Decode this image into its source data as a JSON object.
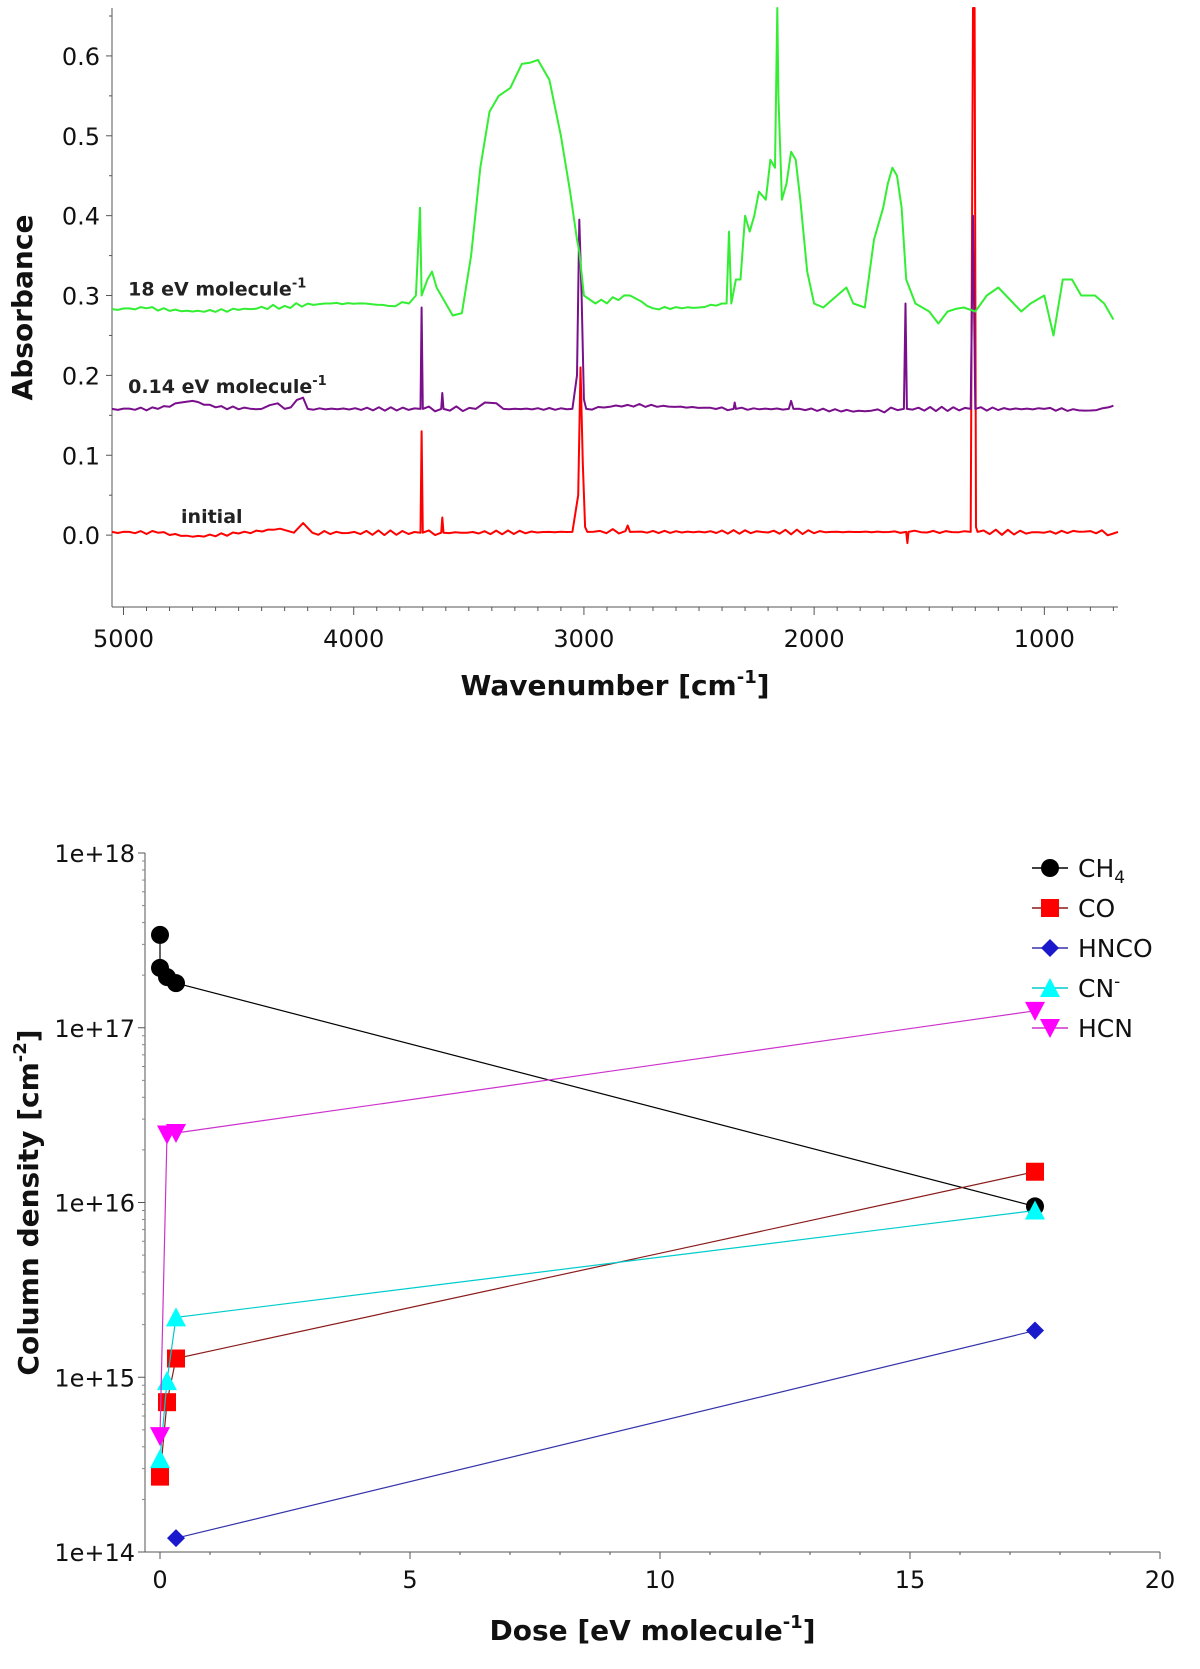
{
  "chart_data": [
    {
      "type": "line",
      "title": "",
      "xlabel": "Wavenumber [cm",
      "xlabel_sup": "-1",
      "xlabel_end": "]",
      "ylabel": "Absorbance",
      "xlim": [
        5050,
        680
      ],
      "ylim": [
        -0.09,
        0.66
      ],
      "xticks": [
        5000,
        4000,
        3000,
        2000,
        1000
      ],
      "yticks": [
        "0.0",
        "0.1",
        "0.2",
        "0.3",
        "0.4",
        "0.5",
        "0.6"
      ],
      "ytick_values": [
        0.0,
        0.1,
        0.2,
        0.3,
        0.4,
        0.5,
        0.6
      ],
      "series": [
        {
          "name": "initial",
          "label_main": "initial",
          "label_sup": "",
          "label_at": [
            4750,
            0.015
          ],
          "color": "#ff0000",
          "baseline": 0.003,
          "points": [
            [
              5050,
              0.004
            ],
            [
              4850,
              0.003
            ],
            [
              4700,
              -0.002
            ],
            [
              4500,
              0.002
            ],
            [
              4320,
              0.008
            ],
            [
              4260,
              0.003
            ],
            [
              4220,
              0.015
            ],
            [
              4180,
              0.003
            ],
            [
              3710,
              0.003
            ],
            [
              3705,
              0.13
            ],
            [
              3700,
              0.003
            ],
            [
              3620,
              0.003
            ],
            [
              3615,
              0.022
            ],
            [
              3610,
              0.003
            ],
            [
              3050,
              0.004
            ],
            [
              3025,
              0.05
            ],
            [
              3015,
              0.21
            ],
            [
              3005,
              0.09
            ],
            [
              2995,
              0.01
            ],
            [
              2985,
              0.004
            ],
            [
              2820,
              0.005
            ],
            [
              2810,
              0.012
            ],
            [
              2800,
              0.004
            ],
            [
              1600,
              0.004
            ],
            [
              1595,
              -0.01
            ],
            [
              1590,
              0.004
            ],
            [
              1320,
              0.004
            ],
            [
              1310,
              0.66
            ],
            [
              1303,
              0.66
            ],
            [
              1297,
              0.01
            ],
            [
              1290,
              0.004
            ],
            [
              1000,
              0.003
            ],
            [
              800,
              0.005
            ],
            [
              700,
              0.002
            ],
            [
              680,
              0.004
            ]
          ]
        },
        {
          "name": "0.14 eV molecule-1",
          "label_main": "0.14 eV molecule",
          "label_sup": "-1",
          "label_at": [
            4980,
            0.178
          ],
          "color": "#7a0f8c",
          "baseline": 0.158,
          "points": [
            [
              5050,
              0.158
            ],
            [
              4850,
              0.158
            ],
            [
              4750,
              0.166
            ],
            [
              4700,
              0.168
            ],
            [
              4600,
              0.16
            ],
            [
              4400,
              0.158
            ],
            [
              4330,
              0.165
            ],
            [
              4300,
              0.158
            ],
            [
              4220,
              0.172
            ],
            [
              4200,
              0.158
            ],
            [
              3710,
              0.158
            ],
            [
              3705,
              0.285
            ],
            [
              3700,
              0.158
            ],
            [
              3620,
              0.158
            ],
            [
              3615,
              0.178
            ],
            [
              3610,
              0.158
            ],
            [
              3470,
              0.158
            ],
            [
              3430,
              0.166
            ],
            [
              3380,
              0.165
            ],
            [
              3350,
              0.158
            ],
            [
              3050,
              0.158
            ],
            [
              3030,
              0.2
            ],
            [
              3020,
              0.395
            ],
            [
              3010,
              0.3
            ],
            [
              3000,
              0.17
            ],
            [
              2990,
              0.158
            ],
            [
              2810,
              0.163
            ],
            [
              2350,
              0.158
            ],
            [
              2345,
              0.166
            ],
            [
              2340,
              0.158
            ],
            [
              2110,
              0.158
            ],
            [
              2100,
              0.168
            ],
            [
              2090,
              0.158
            ],
            [
              1780,
              0.155
            ],
            [
              1610,
              0.158
            ],
            [
              1603,
              0.29
            ],
            [
              1597,
              0.158
            ],
            [
              1320,
              0.158
            ],
            [
              1310,
              0.4
            ],
            [
              1300,
              0.158
            ],
            [
              1000,
              0.158
            ],
            [
              800,
              0.156
            ],
            [
              720,
              0.16
            ],
            [
              700,
              0.162
            ]
          ]
        },
        {
          "name": "18 eV molecule-1",
          "label_main": "18 eV molecule",
          "label_sup": "-1",
          "label_at": [
            4980,
            0.3
          ],
          "color": "#33ee33",
          "baseline": 0.28,
          "points": [
            [
              5050,
              0.283
            ],
            [
              4900,
              0.284
            ],
            [
              4700,
              0.28
            ],
            [
              4500,
              0.282
            ],
            [
              4300,
              0.287
            ],
            [
              4100,
              0.29
            ],
            [
              3950,
              0.29
            ],
            [
              3850,
              0.287
            ],
            [
              3760,
              0.29
            ],
            [
              3730,
              0.3
            ],
            [
              3712,
              0.41
            ],
            [
              3705,
              0.3
            ],
            [
              3680,
              0.32
            ],
            [
              3660,
              0.33
            ],
            [
              3640,
              0.31
            ],
            [
              3600,
              0.29
            ],
            [
              3570,
              0.275
            ],
            [
              3530,
              0.278
            ],
            [
              3490,
              0.35
            ],
            [
              3450,
              0.46
            ],
            [
              3410,
              0.53
            ],
            [
              3370,
              0.55
            ],
            [
              3320,
              0.56
            ],
            [
              3270,
              0.59
            ],
            [
              3200,
              0.595
            ],
            [
              3150,
              0.57
            ],
            [
              3100,
              0.5
            ],
            [
              3060,
              0.43
            ],
            [
              3030,
              0.37
            ],
            [
              3020,
              0.355
            ],
            [
              3000,
              0.3
            ],
            [
              2950,
              0.29
            ],
            [
              2800,
              0.3
            ],
            [
              2700,
              0.284
            ],
            [
              2500,
              0.285
            ],
            [
              2400,
              0.29
            ],
            [
              2380,
              0.29
            ],
            [
              2370,
              0.38
            ],
            [
              2360,
              0.29
            ],
            [
              2340,
              0.32
            ],
            [
              2320,
              0.32
            ],
            [
              2300,
              0.4
            ],
            [
              2280,
              0.38
            ],
            [
              2260,
              0.4
            ],
            [
              2240,
              0.43
            ],
            [
              2210,
              0.42
            ],
            [
              2190,
              0.47
            ],
            [
              2170,
              0.46
            ],
            [
              2160,
              0.66
            ],
            [
              2155,
              0.55
            ],
            [
              2140,
              0.42
            ],
            [
              2120,
              0.44
            ],
            [
              2100,
              0.48
            ],
            [
              2080,
              0.47
            ],
            [
              2060,
              0.42
            ],
            [
              2030,
              0.33
            ],
            [
              2000,
              0.29
            ],
            [
              1960,
              0.285
            ],
            [
              1900,
              0.3
            ],
            [
              1860,
              0.31
            ],
            [
              1830,
              0.29
            ],
            [
              1780,
              0.285
            ],
            [
              1740,
              0.37
            ],
            [
              1700,
              0.41
            ],
            [
              1680,
              0.44
            ],
            [
              1660,
              0.46
            ],
            [
              1640,
              0.45
            ],
            [
              1620,
              0.41
            ],
            [
              1600,
              0.32
            ],
            [
              1560,
              0.29
            ],
            [
              1500,
              0.28
            ],
            [
              1460,
              0.265
            ],
            [
              1420,
              0.28
            ],
            [
              1350,
              0.285
            ],
            [
              1300,
              0.28
            ],
            [
              1250,
              0.3
            ],
            [
              1200,
              0.31
            ],
            [
              1150,
              0.295
            ],
            [
              1100,
              0.28
            ],
            [
              1060,
              0.29
            ],
            [
              1000,
              0.3
            ],
            [
              960,
              0.25
            ],
            [
              920,
              0.32
            ],
            [
              880,
              0.32
            ],
            [
              840,
              0.3
            ],
            [
              780,
              0.3
            ],
            [
              740,
              0.29
            ],
            [
              700,
              0.27
            ]
          ]
        }
      ]
    },
    {
      "type": "scatter",
      "title": "",
      "xlabel": "Dose [eV molecule",
      "xlabel_sup": "-1",
      "xlabel_end": "]",
      "ylabel": "Column density [cm",
      "ylabel_sup": "-2",
      "ylabel_end": "]",
      "xscale": "linear",
      "yscale": "log",
      "xlim": [
        -0.3,
        20
      ],
      "ylim": [
        100000000000000.0,
        1e+18
      ],
      "xticks": [
        0,
        5,
        10,
        15,
        20
      ],
      "xtick_labels": [
        "0",
        "5",
        "10",
        "15",
        "20"
      ],
      "yticks": [
        100000000000000.0,
        1000000000000000.0,
        1e+16,
        1e+17,
        1e+18
      ],
      "ytick_labels": [
        "1e+14",
        "1e+15",
        "1e+16",
        "1e+17",
        "1e+18"
      ],
      "legend_position": "top-right",
      "series": [
        {
          "name": "CH4",
          "label_main": "CH",
          "label_sub": "4",
          "label_sup": "",
          "marker": "circle",
          "color": "#000000",
          "line_color": "#000000",
          "x": [
            0.0,
            0.0,
            0.14,
            0.32,
            17.5
          ],
          "y": [
            3.4e+17,
            2.2e+17,
            1.95e+17,
            1.8e+17,
            9500000000000000.0
          ]
        },
        {
          "name": "CO",
          "label_main": "CO",
          "label_sub": "",
          "label_sup": "",
          "marker": "square",
          "color": "#ff0000",
          "line_color": "#8b1a1a",
          "x": [
            0.0,
            0.14,
            0.32,
            17.5
          ],
          "y": [
            270000000000000.0,
            720000000000000.0,
            1280000000000000.0,
            1.5e+16
          ]
        },
        {
          "name": "HNCO",
          "label_main": "HNCO",
          "label_sub": "",
          "label_sup": "",
          "marker": "diamond",
          "color": "#1a1acc",
          "line_color": "#3333aa",
          "x": [
            0.32,
            17.5
          ],
          "y": [
            120000000000000.0,
            1850000000000000.0
          ]
        },
        {
          "name": "CN-",
          "label_main": "CN",
          "label_sub": "",
          "label_sup": "-",
          "marker": "triangle-up",
          "color": "#00ffff",
          "line_color": "#00cccc",
          "x": [
            0.0,
            0.14,
            0.32,
            17.5
          ],
          "y": [
            340000000000000.0,
            950000000000000.0,
            2200000000000000.0,
            9000000000000000.0
          ]
        },
        {
          "name": "HCN",
          "label_main": "HCN",
          "label_sub": "",
          "label_sup": "",
          "marker": "triangle-down",
          "color": "#ff00ff",
          "line_color": "#cc33cc",
          "x": [
            0.0,
            0.14,
            0.32,
            17.5
          ],
          "y": [
            460000000000000.0,
            2.45e+16,
            2.5e+16,
            1.25e+17
          ]
        }
      ]
    }
  ]
}
